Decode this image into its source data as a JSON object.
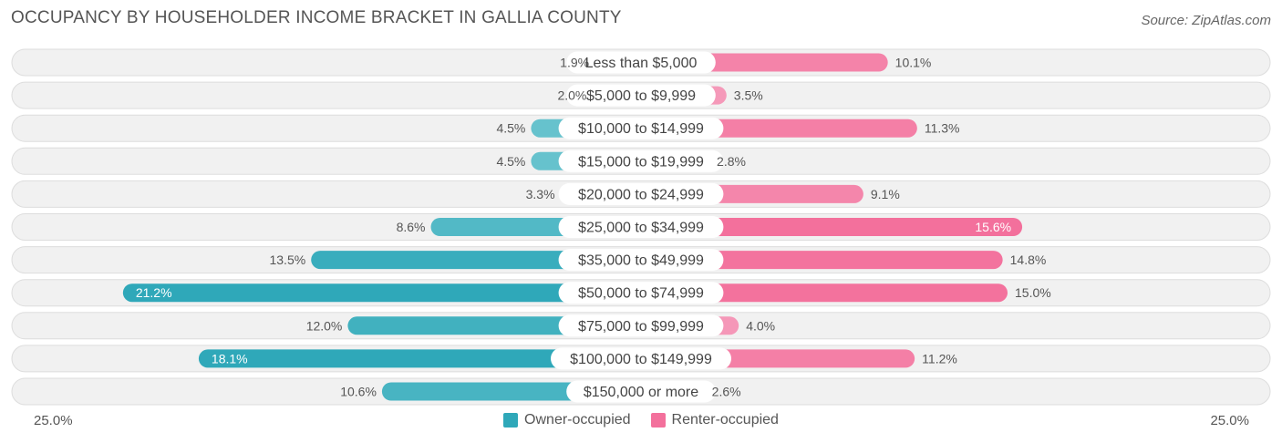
{
  "header": {
    "title": "OCCUPANCY BY HOUSEHOLDER INCOME BRACKET IN GALLIA COUNTY",
    "source": "Source: ZipAtlas.com"
  },
  "colors": {
    "owner_bar": "#7ccdd5",
    "owner_bar_strong": "#2fa8b9",
    "renter_bar": "#f6a5c1",
    "renter_bar_strong": "#f3709c",
    "row_bg": "#f1f1f1",
    "row_border": "#dddddd"
  },
  "chart_data": {
    "type": "bar",
    "orientation": "horizontal-diverging",
    "categories": [
      "Less than $5,000",
      "$5,000 to $9,999",
      "$10,000 to $14,999",
      "$15,000 to $19,999",
      "$20,000 to $24,999",
      "$25,000 to $34,999",
      "$35,000 to $49,999",
      "$50,000 to $74,999",
      "$75,000 to $99,999",
      "$100,000 to $149,999",
      "$150,000 or more"
    ],
    "series": [
      {
        "name": "Owner-occupied",
        "values": [
          1.9,
          2.0,
          4.5,
          4.5,
          3.3,
          8.6,
          13.5,
          21.2,
          12.0,
          18.1,
          10.6
        ],
        "labels": [
          "1.9%",
          "2.0%",
          "4.5%",
          "4.5%",
          "3.3%",
          "8.6%",
          "13.5%",
          "21.2%",
          "12.0%",
          "18.1%",
          "10.6%"
        ]
      },
      {
        "name": "Renter-occupied",
        "values": [
          10.1,
          3.5,
          11.3,
          2.8,
          9.1,
          15.6,
          14.8,
          15.0,
          4.0,
          11.2,
          2.6
        ],
        "labels": [
          "10.1%",
          "3.5%",
          "11.3%",
          "2.8%",
          "9.1%",
          "15.6%",
          "14.8%",
          "15.0%",
          "4.0%",
          "11.2%",
          "2.6%"
        ]
      }
    ],
    "xlim": [
      -25,
      25
    ],
    "axis_min_label": "25.0%",
    "axis_max_label": "25.0%",
    "legend_position": "bottom-center"
  }
}
